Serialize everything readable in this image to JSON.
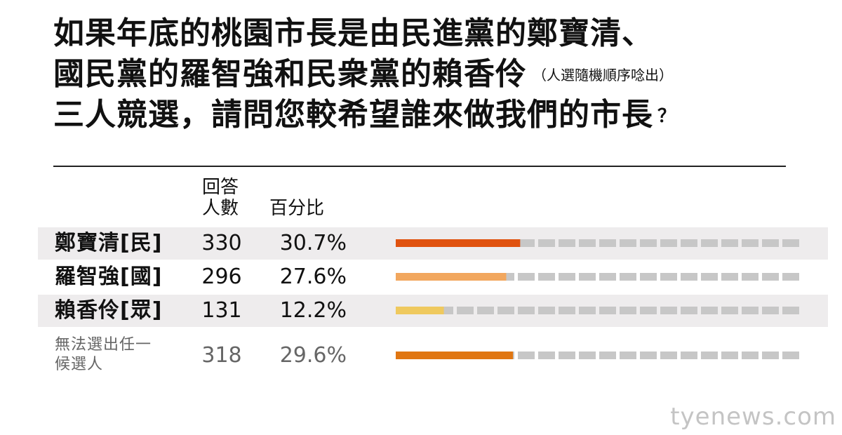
{
  "title": {
    "line1": "如果年底的桃園市長是由民進黨的鄭寶清、",
    "line2": "國民黨的羅智強和民衆黨的賴香伶",
    "note": "（人選隨機順序唸出）",
    "line3": "三人競選，請問您較希望誰來做我們的市長",
    "question_mark": "？"
  },
  "columns": {
    "count": "回答人數",
    "pct": "百分比"
  },
  "colors": {
    "dpp": "#e0520f",
    "kmt": "#f2a75e",
    "tpp": "#efc95e",
    "undecided": "#e07612",
    "remaining": "#c7c7c7",
    "row_shade": "#eeeced"
  },
  "chart_data": {
    "type": "bar",
    "categories": [
      "鄭寶清[民]",
      "羅智強[國]",
      "賴香伶[眾]",
      "無法選出任一候選人"
    ],
    "counts": [
      330,
      296,
      131,
      318
    ],
    "values": [
      30.7,
      27.6,
      12.2,
      29.6
    ],
    "pct_labels": [
      "30.7%",
      "27.6%",
      "12.2%",
      "29.6%"
    ],
    "ylim": [
      0,
      100
    ]
  },
  "rows": [
    {
      "name": "鄭寶清[民]",
      "count": "330",
      "pct": "30.7%"
    },
    {
      "name": "羅智強[國]",
      "count": "296",
      "pct": "27.6%"
    },
    {
      "name": "賴香伶[眾]",
      "count": "131",
      "pct": "12.2%"
    },
    {
      "name": "無法選出任一候選人",
      "count": "318",
      "pct": "29.6%"
    }
  ],
  "watermark": "tyenews.com"
}
